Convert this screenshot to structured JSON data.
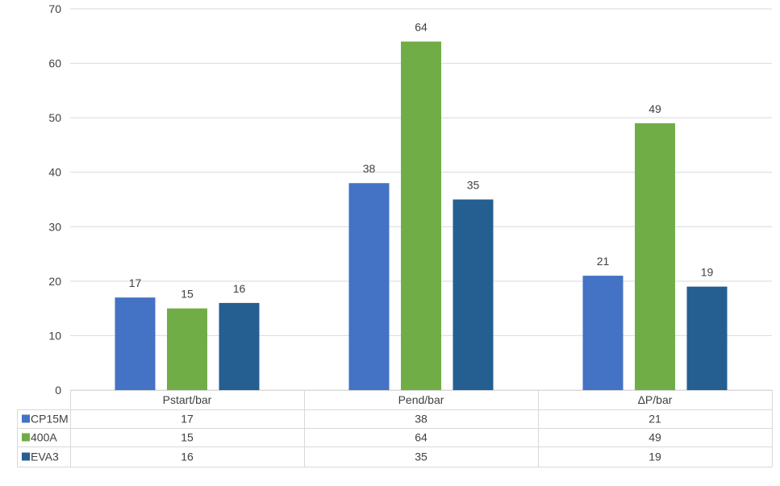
{
  "chart_data": {
    "type": "bar",
    "categories": [
      "Pstart/bar",
      "Pend/bar",
      "ΔP/bar"
    ],
    "series": [
      {
        "name": "CP15M",
        "values": [
          17,
          38,
          21
        ],
        "color": "#4472C4"
      },
      {
        "name": "400A",
        "values": [
          15,
          64,
          49
        ],
        "color": "#70AD47"
      },
      {
        "name": "EVA3",
        "values": [
          16,
          35,
          19
        ],
        "color": "#255E91"
      }
    ],
    "ylim": [
      0,
      70
    ],
    "yticks": [
      0,
      10,
      20,
      30,
      40,
      50,
      60,
      70
    ],
    "grid": true,
    "data_labels": true,
    "legend": "data-table",
    "data_table": true
  }
}
